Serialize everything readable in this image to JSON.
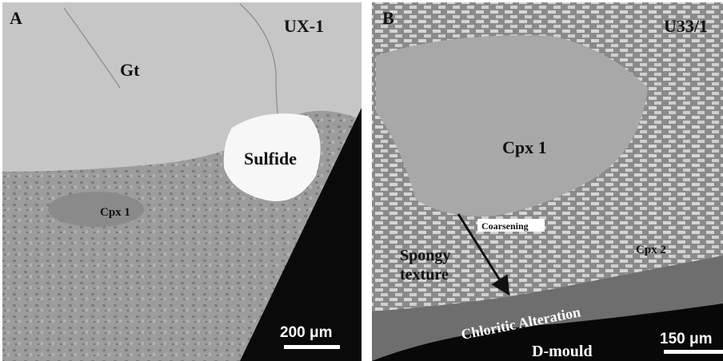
{
  "panels": [
    {
      "label": "A",
      "sample": "UX-1",
      "annotations": [
        "Gt",
        "Sulfide",
        "Cpx 1"
      ],
      "scale_bar": "200 μm"
    },
    {
      "label": "B",
      "sample": "U33/1",
      "annotations": [
        "Cpx 1",
        "Coarsening",
        "Spongy",
        "texture",
        "Cpx 2",
        "Chloritic Alteration",
        "D-mould"
      ],
      "scale_bar": "150 μm"
    }
  ]
}
